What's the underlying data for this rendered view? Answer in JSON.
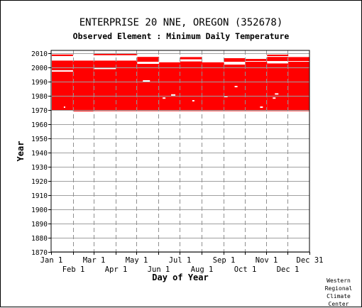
{
  "credit": [
    "Western",
    "Regional",
    "Climate",
    "Center"
  ],
  "chart_data": {
    "type": "heatmap",
    "title": "ENTERPRISE 20 NNE, OREGON   (352678)",
    "subtitle": "Observed Element : Minimum Daily Temperature",
    "xlabel": "Day of Year",
    "ylabel": "Year",
    "x_range_day_of_year": [
      1,
      366
    ],
    "xlim_days": [
      0,
      366
    ],
    "ylim": [
      1870,
      2012
    ],
    "x_ticks_top": [
      {
        "label": "Jan 1",
        "day": 1
      },
      {
        "label": "Mar 1",
        "day": 61
      },
      {
        "label": "May 1",
        "day": 122
      },
      {
        "label": "Jul 1",
        "day": 183
      },
      {
        "label": "Sep 1",
        "day": 245
      },
      {
        "label": "Nov 1",
        "day": 306
      },
      {
        "label": "Dec 31",
        "day": 366
      }
    ],
    "x_ticks_bottom": [
      {
        "label": "Feb 1",
        "day": 32
      },
      {
        "label": "Apr 1",
        "day": 92
      },
      {
        "label": "Jun 1",
        "day": 153
      },
      {
        "label": "Aug 1",
        "day": 214
      },
      {
        "label": "Oct 1",
        "day": 275
      },
      {
        "label": "Dec 1",
        "day": 336
      }
    ],
    "y_ticks": [
      1870,
      1880,
      1890,
      1900,
      1910,
      1920,
      1930,
      1940,
      1950,
      1960,
      1970,
      1980,
      1990,
      2000,
      2010
    ],
    "grid": true,
    "data_color": "#ff0000",
    "coverage_blocks": [
      {
        "start_day": 1,
        "end_day": 31,
        "from_year": 1969.5,
        "to_year": 2004.8
      },
      {
        "start_day": 31,
        "end_day": 60,
        "from_year": 1969.0,
        "to_year": 2004.8
      },
      {
        "start_day": 60,
        "end_day": 122,
        "from_year": 1969.2,
        "to_year": 2004.8
      },
      {
        "start_day": 122,
        "end_day": 153,
        "from_year": 1969.2,
        "to_year": 2002.5
      },
      {
        "start_day": 153,
        "end_day": 183,
        "from_year": 1969.2,
        "to_year": 2003.6
      },
      {
        "start_day": 183,
        "end_day": 214,
        "from_year": 1969.2,
        "to_year": 2004.2
      },
      {
        "start_day": 214,
        "end_day": 245,
        "from_year": 1969.2,
        "to_year": 2003.6
      },
      {
        "start_day": 245,
        "end_day": 275,
        "from_year": 1969.2,
        "to_year": 2002.0
      },
      {
        "start_day": 275,
        "end_day": 306,
        "from_year": 1969.2,
        "to_year": 2004.0
      },
      {
        "start_day": 306,
        "end_day": 336,
        "from_year": 1969.2,
        "to_year": 2002.8
      },
      {
        "start_day": 336,
        "end_day": 366,
        "from_year": 1969.2,
        "to_year": 2004.0
      }
    ],
    "recent_strips": [
      {
        "start_day": 1,
        "end_day": 31,
        "from_year": 2008.0,
        "to_year": 2009.1
      },
      {
        "start_day": 60,
        "end_day": 122,
        "from_year": 2008.6,
        "to_year": 2009.7
      },
      {
        "start_day": 122,
        "end_day": 153,
        "from_year": 2004.0,
        "to_year": 2007.4
      },
      {
        "start_day": 183,
        "end_day": 214,
        "from_year": 2005.7,
        "to_year": 2007.3
      },
      {
        "start_day": 245,
        "end_day": 275,
        "from_year": 2004.0,
        "to_year": 2006.5
      },
      {
        "start_day": 275,
        "end_day": 306,
        "from_year": 2004.5,
        "to_year": 2006.0
      },
      {
        "start_day": 306,
        "end_day": 336,
        "from_year": 2004.5,
        "to_year": 2007.4
      },
      {
        "start_day": 306,
        "end_day": 336,
        "from_year": 2008.0,
        "to_year": 2009.0
      },
      {
        "start_day": 336,
        "end_day": 366,
        "from_year": 2004.5,
        "to_year": 2007.3
      }
    ],
    "gaps": [
      {
        "start_day": 60,
        "end_day": 92,
        "year": 1999.3
      },
      {
        "start_day": 130,
        "end_day": 140,
        "year": 1990.5
      },
      {
        "start_day": 1,
        "end_day": 31,
        "year": 1997.5
      },
      {
        "start_day": 170,
        "end_day": 176,
        "year": 1980.6
      },
      {
        "start_day": 158,
        "end_day": 162,
        "year": 1978.4
      },
      {
        "start_day": 260,
        "end_day": 264,
        "year": 1986.5
      },
      {
        "start_day": 296,
        "end_day": 300,
        "year": 1972.0
      },
      {
        "start_day": 317,
        "end_day": 322,
        "year": 1981.3
      },
      {
        "start_day": 314,
        "end_day": 318,
        "year": 1978.4
      },
      {
        "start_day": 200,
        "end_day": 203,
        "year": 1976.5
      },
      {
        "start_day": 245,
        "end_day": 250,
        "year": 1979.5
      },
      {
        "start_day": 18,
        "end_day": 20,
        "year": 1972.0
      }
    ]
  }
}
